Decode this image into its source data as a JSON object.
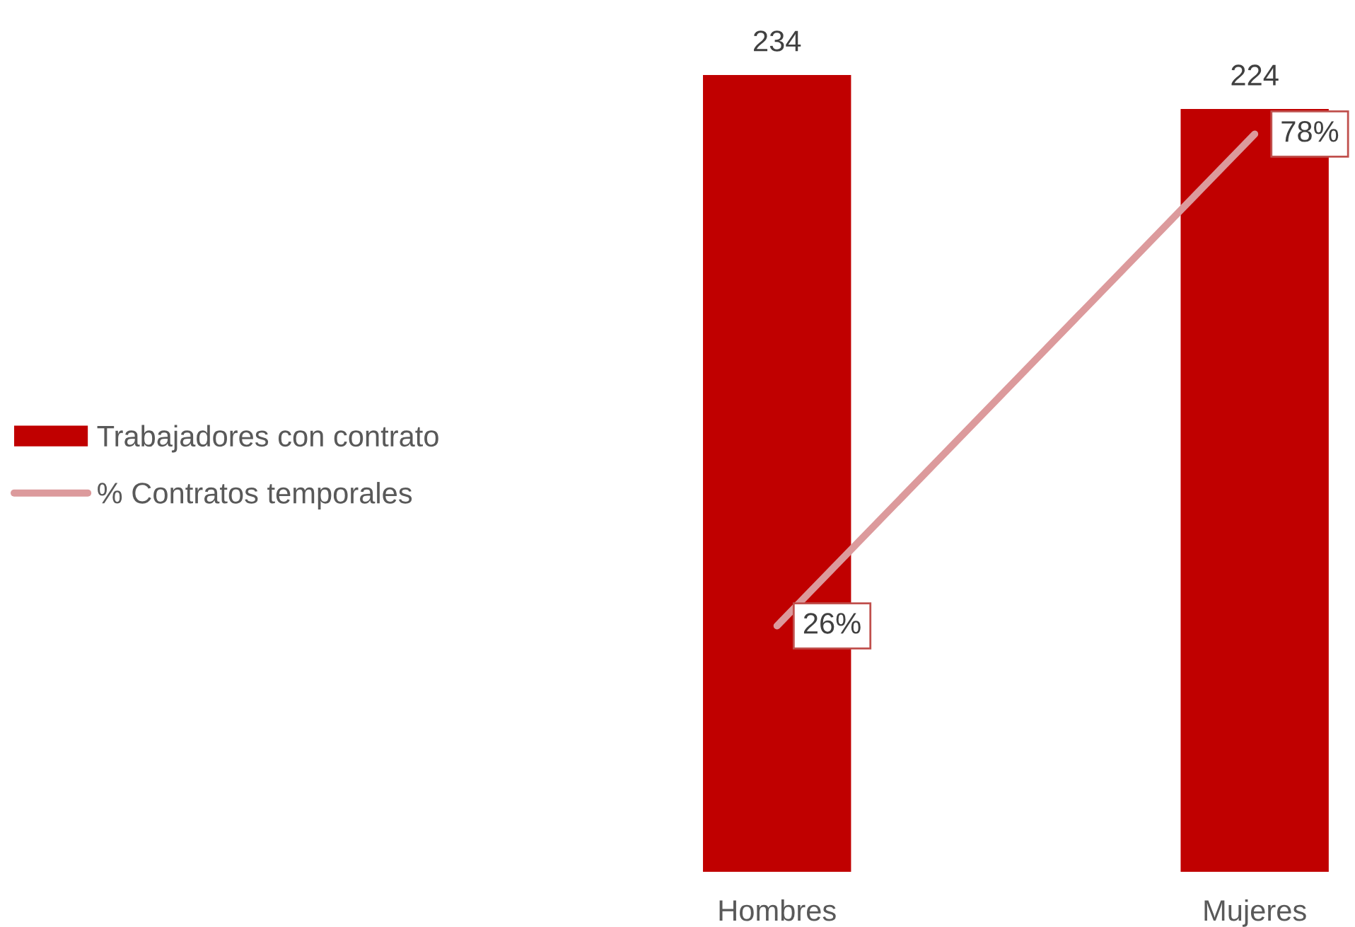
{
  "chart_data": {
    "type": "bar",
    "categories": [
      "Hombres",
      "Mujeres"
    ],
    "tick_labels": "x",
    "legend": "left",
    "data_labels": true,
    "series": [
      {
        "name": "Trabajadores con contrato",
        "color": "#c00000",
        "values": [
          234,
          224
        ]
      },
      {
        "name": "% Contratos temporales",
        "type": "line",
        "axis": "y2",
        "color": "#dc9a9c",
        "values": [
          26,
          78
        ],
        "value_labels": [
          "26%",
          "78%"
        ]
      }
    ]
  }
}
